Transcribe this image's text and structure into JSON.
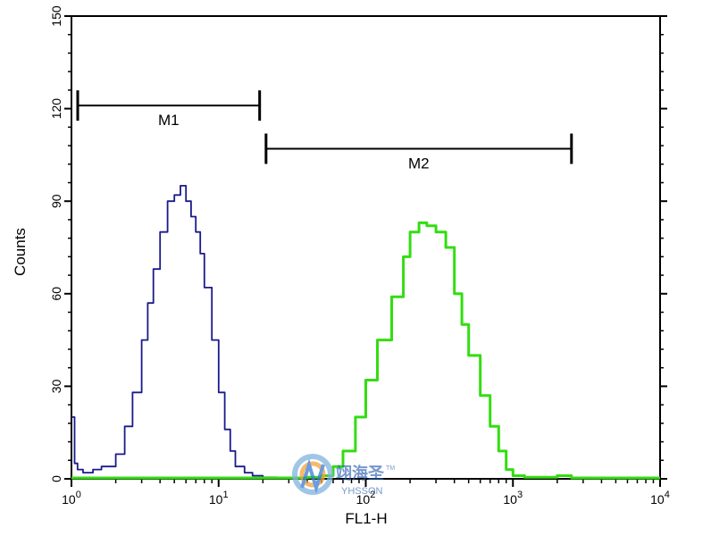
{
  "chart_data": {
    "type": "line",
    "xlabel": "FL1-H",
    "ylabel": "Counts",
    "x_scale": "log",
    "xlim": [
      1,
      10000
    ],
    "ylim": [
      0,
      150
    ],
    "x_ticks": [
      {
        "value": 1,
        "base": "10",
        "exp": "0"
      },
      {
        "value": 10,
        "base": "10",
        "exp": "1"
      },
      {
        "value": 100,
        "base": "10",
        "exp": "2"
      },
      {
        "value": 1000,
        "base": "10",
        "exp": "3"
      },
      {
        "value": 10000,
        "base": "10",
        "exp": "4"
      }
    ],
    "y_ticks": [
      "0",
      "30",
      "60",
      "90",
      "120",
      "150"
    ],
    "markers": [
      {
        "label": "M1",
        "range": [
          1,
          19
        ],
        "y": 121
      },
      {
        "label": "M2",
        "range": [
          21,
          2500
        ],
        "y": 107
      }
    ],
    "series": [
      {
        "color": "#1a1a8c",
        "x": [
          1,
          1.05,
          1.1,
          1.2,
          1.4,
          1.6,
          1.8,
          2.0,
          2.3,
          2.6,
          3.0,
          3.3,
          3.6,
          4.0,
          4.5,
          5.0,
          5.5,
          6.0,
          6.5,
          7.0,
          7.5,
          8.0,
          9.0,
          10,
          11,
          12,
          13,
          15,
          17,
          20,
          25,
          30
        ],
        "y": [
          20,
          5,
          3,
          2,
          3,
          4,
          4,
          8,
          17,
          28,
          45,
          57,
          68,
          80,
          90,
          92,
          95,
          90,
          85,
          80,
          73,
          62,
          45,
          28,
          16,
          9,
          4,
          2,
          1,
          0.5,
          0.3,
          0
        ]
      },
      {
        "color": "#33dd11",
        "x": [
          1,
          30,
          40,
          50,
          60,
          70,
          85,
          100,
          120,
          150,
          180,
          200,
          230,
          260,
          300,
          350,
          400,
          450,
          500,
          600,
          700,
          800,
          900,
          1000,
          1200,
          1500,
          2000,
          2500,
          10000
        ],
        "y": [
          0,
          0,
          0.5,
          1,
          4,
          9,
          20,
          32,
          45,
          59,
          72,
          80,
          83,
          82,
          80,
          75,
          60,
          50,
          40,
          27,
          17,
          9,
          3,
          1,
          0.5,
          0.5,
          1,
          0,
          0
        ]
      }
    ]
  },
  "watermark": {
    "name_cn": "翊海圣",
    "name_en": "YHSSON",
    "trademark": "TM"
  }
}
